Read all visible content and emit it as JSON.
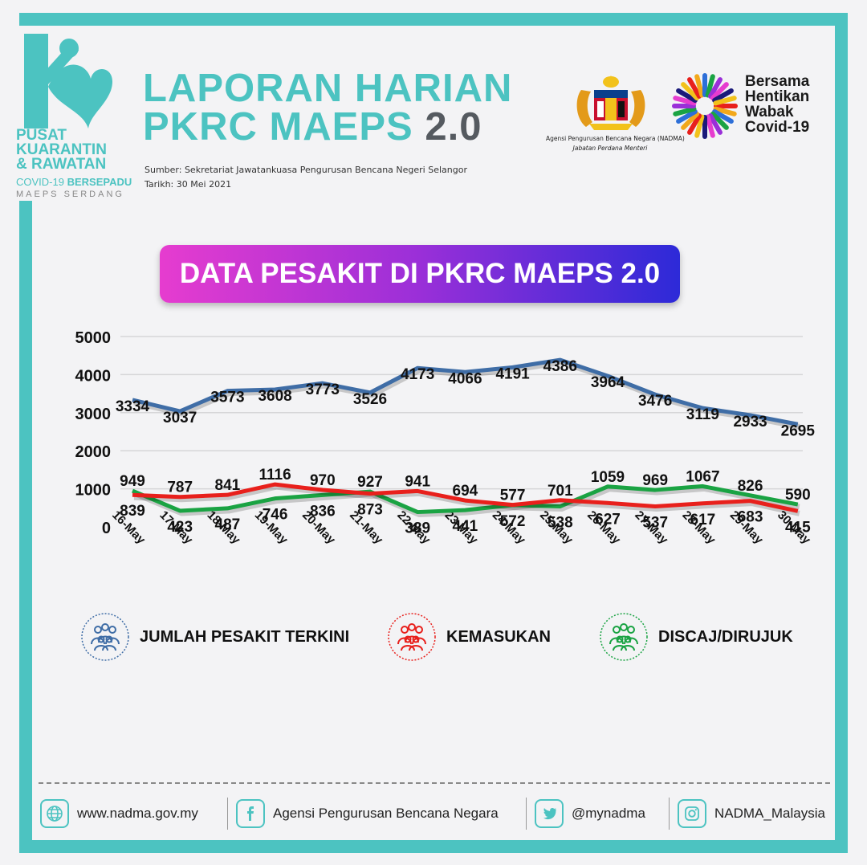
{
  "logo": {
    "line1": "PUSAT",
    "line2": "KUARANTIN",
    "line3": "& RAWATAN",
    "sub_a": "COVID-19 ",
    "sub_b": "BERSEPADU",
    "sub2": "MAEPS SERDANG"
  },
  "header": {
    "title_line1": "LAPORAN HARIAN",
    "title_line2_a": "PKRC MAEPS ",
    "title_line2_b": "2.0",
    "source": "Sumber: Sekretariat Jawatankuasa Pengurusan Bencana Negeri Selangor",
    "date": "Tarikh: 30 Mei 2021"
  },
  "agency": {
    "caption1": "Agensi Pengurusan Bencana Negara (NADMA)",
    "caption2": "Jabatan Perdana Menteri"
  },
  "campaign": {
    "line1": "Bersama",
    "line2": "Hentikan",
    "line3": "Wabak",
    "line4": "Covid-19"
  },
  "banner": {
    "title": "DATA PESAKIT DI PKRC MAEPS 2.0"
  },
  "chart_data": {
    "type": "line",
    "categories": [
      "16-May",
      "17-May",
      "18-May",
      "19-May",
      "20-May",
      "21-May",
      "22-May",
      "23-May",
      "24-May",
      "25-May",
      "26-May",
      "27-May",
      "28-May",
      "29-May",
      "30-May"
    ],
    "ylim": [
      0,
      5000
    ],
    "yticks": [
      0,
      1000,
      2000,
      3000,
      4000,
      5000
    ],
    "grid": true,
    "legend_position": "bottom",
    "series": [
      {
        "name": "JUMLAH PESAKIT TERKINI",
        "color": "#3f6da6",
        "values": [
          3334,
          3037,
          3573,
          3608,
          3773,
          3526,
          4173,
          4066,
          4191,
          4386,
          3964,
          3476,
          3119,
          2933,
          2695
        ]
      },
      {
        "name": "KEMASUKAN",
        "color": "#e8201c",
        "values": [
          839,
          787,
          841,
          1116,
          970,
          873,
          941,
          694,
          577,
          701,
          627,
          537,
          617,
          683,
          415
        ]
      },
      {
        "name": "DISCAJ/DIRUJUK",
        "color": "#1aa343",
        "values": [
          949,
          423,
          487,
          746,
          836,
          927,
          389,
          441,
          572,
          538,
          1059,
          969,
          1067,
          826,
          590
        ]
      }
    ]
  },
  "legend": {
    "total": "JUMLAH PESAKIT TERKINI",
    "admissions": "KEMASUKAN",
    "discharged": "DISCAJ/DIRUJUK"
  },
  "footer": {
    "website": "www.nadma.gov.my",
    "facebook": "Agensi Pengurusan Bencana Negara",
    "twitter": "@mynadma",
    "instagram": "NADMA_Malaysia"
  }
}
